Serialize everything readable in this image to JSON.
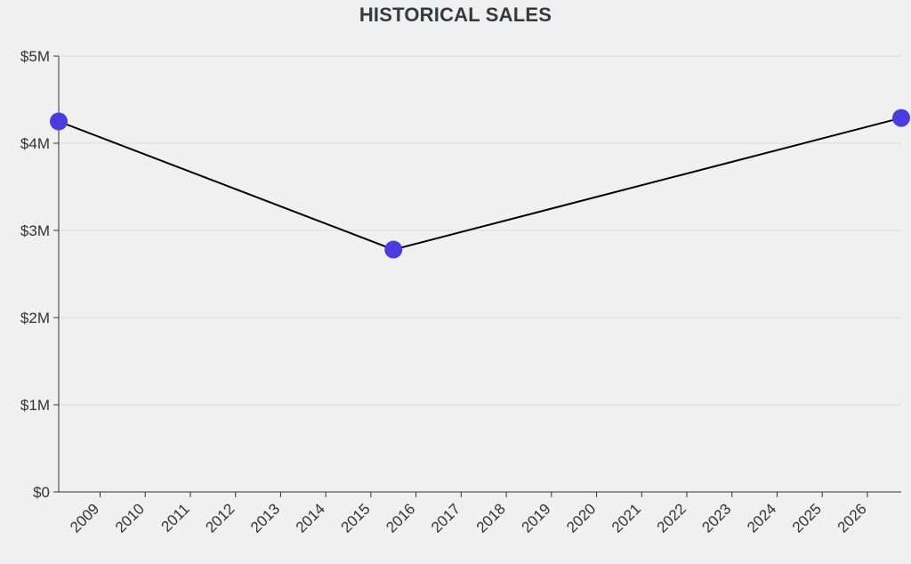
{
  "chart_data": {
    "type": "line",
    "title": "HISTORICAL SALES",
    "xlabel": "",
    "ylabel": "",
    "x_ticks": [
      "2009",
      "2010",
      "2011",
      "2012",
      "2013",
      "2014",
      "2015",
      "2016",
      "2017",
      "2018",
      "2019",
      "2020",
      "2021",
      "2022",
      "2023",
      "2024",
      "2025",
      "2026"
    ],
    "y_ticks": [
      "$0",
      "$1M",
      "$2M",
      "$3M",
      "$4M",
      "$5M"
    ],
    "ylim": [
      0,
      5000000
    ],
    "xlim": [
      "2008-02",
      "2026-10"
    ],
    "grid": "horizontal",
    "series": [
      {
        "x": [
          "2008-02",
          "2015-07",
          "2026-10"
        ],
        "y": [
          4250000,
          2780000,
          4290000
        ],
        "line_color": "#000000",
        "marker_color": "#4c3ce0"
      }
    ]
  }
}
